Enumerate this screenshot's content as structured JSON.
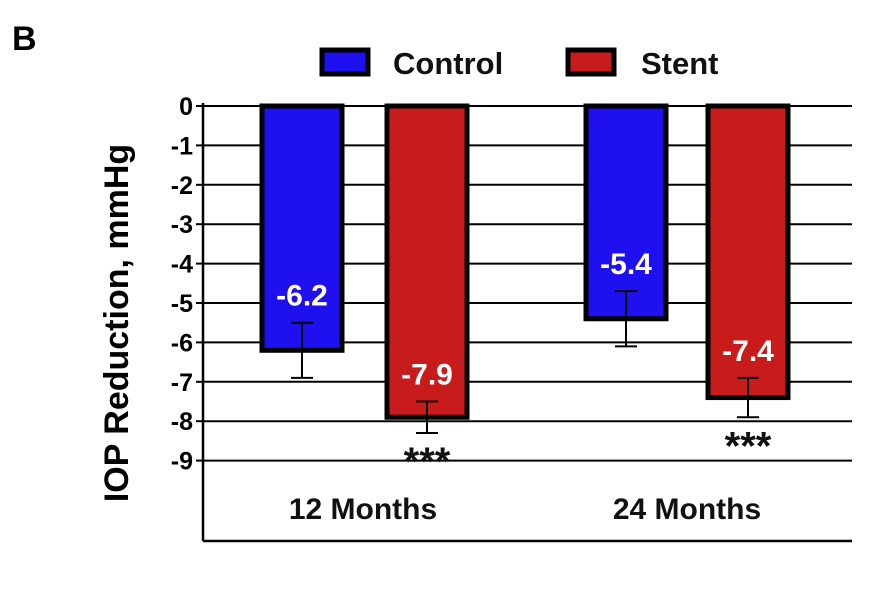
{
  "panel_label": "B",
  "chart_data": {
    "type": "bar",
    "title": "",
    "ylabel": "IOP Reduction, mmHg",
    "xlabel": "",
    "ylim": [
      -9,
      0
    ],
    "yticks": [
      0,
      -1,
      -2,
      -3,
      -4,
      -5,
      -6,
      -7,
      -8,
      -9
    ],
    "ytick_labels": [
      "0",
      "-1",
      "-2",
      "-3",
      "-4",
      "-5",
      "-6",
      "-7",
      "-8",
      "-9"
    ],
    "grid": true,
    "legend_position": "top",
    "categories": [
      "12 Months",
      "24 Months"
    ],
    "series": [
      {
        "name": "Control",
        "color": "#1f10f0",
        "values": [
          -6.2,
          -5.4
        ],
        "labels": [
          "-6.2",
          "-5.4"
        ],
        "error_low": [
          -6.9,
          -6.1
        ],
        "error_high": [
          -5.5,
          -4.7
        ],
        "significance": [
          "",
          ""
        ]
      },
      {
        "name": "Stent",
        "color": "#c81b1b",
        "values": [
          -7.9,
          -7.4
        ],
        "labels": [
          "-7.9",
          "-7.4"
        ],
        "error_low": [
          -8.3,
          -7.9
        ],
        "error_high": [
          -7.5,
          -6.9
        ],
        "significance": [
          "***",
          "***"
        ]
      }
    ]
  }
}
